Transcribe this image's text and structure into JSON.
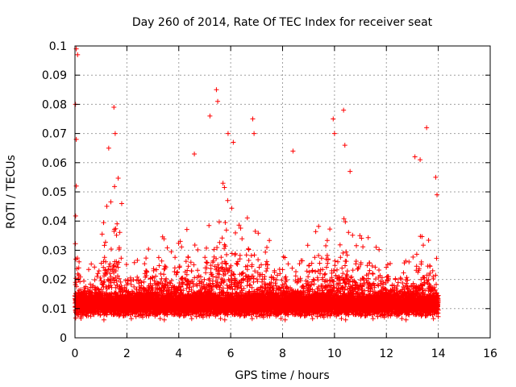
{
  "chart_data": {
    "type": "scatter",
    "title": "Day 260 of 2014, Rate Of TEC Index for receiver seat",
    "xlabel": "GPS time / hours",
    "ylabel": "ROTI / TECUs",
    "xlim": [
      0,
      16
    ],
    "ylim": [
      0,
      0.1
    ],
    "x_ticks": [
      0,
      2,
      4,
      6,
      8,
      10,
      12,
      14,
      16
    ],
    "y_ticks": [
      0,
      0.01,
      0.02,
      0.03,
      0.04,
      0.05,
      0.06,
      0.07,
      0.08,
      0.09,
      0.1
    ],
    "x_tick_labels": [
      "0",
      "2",
      "4",
      "6",
      "8",
      "10",
      "12",
      "14",
      "16"
    ],
    "y_tick_labels": [
      "0",
      "0.01",
      "0.02",
      "0.03",
      "0.04",
      "0.05",
      "0.06",
      "0.07",
      "0.08",
      "0.09",
      "0.1"
    ],
    "grid": true,
    "marker": "+",
    "series": [
      {
        "name": "ROTI",
        "color": "#ff0000",
        "data_range_hours": [
          0,
          14
        ],
        "baseline_range": [
          0.005,
          0.02
        ],
        "notable_points": [
          {
            "x": 0.05,
            "y": 0.099
          },
          {
            "x": 0.1,
            "y": 0.097
          },
          {
            "x": 0.02,
            "y": 0.08
          },
          {
            "x": 0.05,
            "y": 0.068
          },
          {
            "x": 0.05,
            "y": 0.052
          },
          {
            "x": 1.3,
            "y": 0.065
          },
          {
            "x": 1.5,
            "y": 0.079
          },
          {
            "x": 1.55,
            "y": 0.07
          },
          {
            "x": 1.8,
            "y": 0.046
          },
          {
            "x": 4.6,
            "y": 0.063
          },
          {
            "x": 5.2,
            "y": 0.076
          },
          {
            "x": 5.45,
            "y": 0.085
          },
          {
            "x": 5.5,
            "y": 0.081
          },
          {
            "x": 5.9,
            "y": 0.07
          },
          {
            "x": 6.1,
            "y": 0.067
          },
          {
            "x": 6.85,
            "y": 0.075
          },
          {
            "x": 6.9,
            "y": 0.07
          },
          {
            "x": 8.4,
            "y": 0.064
          },
          {
            "x": 9.95,
            "y": 0.075
          },
          {
            "x": 10.0,
            "y": 0.07
          },
          {
            "x": 10.35,
            "y": 0.078
          },
          {
            "x": 10.4,
            "y": 0.066
          },
          {
            "x": 10.6,
            "y": 0.057
          },
          {
            "x": 13.1,
            "y": 0.062
          },
          {
            "x": 13.3,
            "y": 0.061
          },
          {
            "x": 13.55,
            "y": 0.072
          },
          {
            "x": 13.9,
            "y": 0.055
          },
          {
            "x": 13.95,
            "y": 0.049
          }
        ]
      }
    ]
  }
}
